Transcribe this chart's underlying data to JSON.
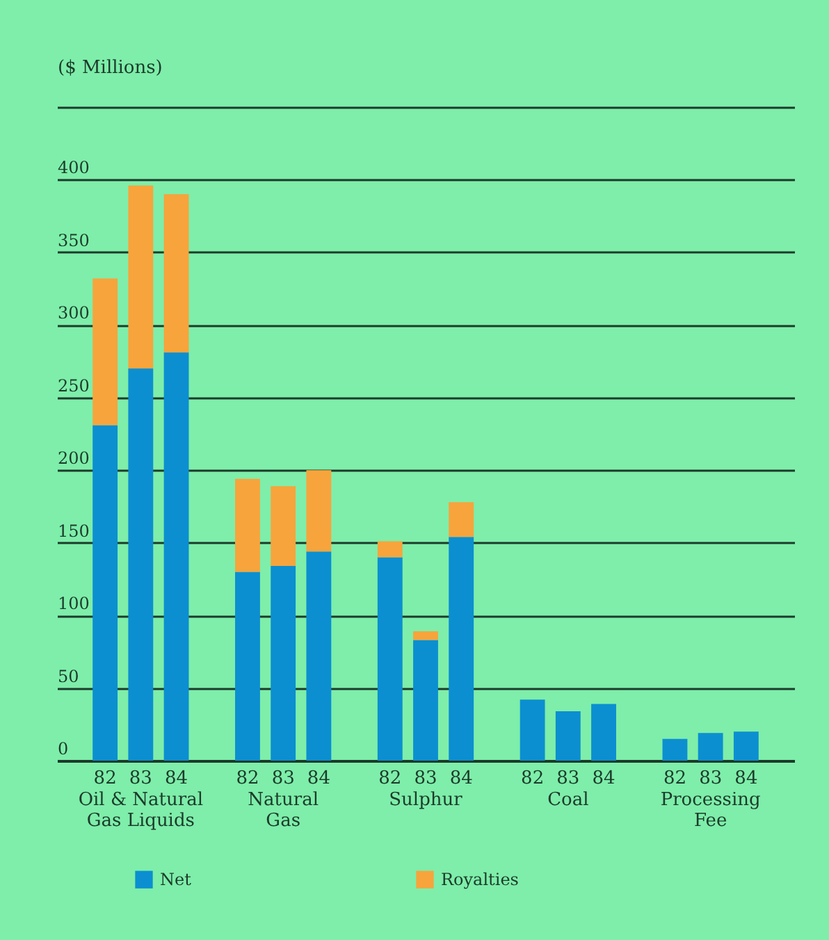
{
  "chart_data": {
    "type": "bar",
    "stacked": true,
    "ylabel": "($ Millions)",
    "categories": [
      "82",
      "83",
      "84",
      "82",
      "83",
      "84",
      "82",
      "83",
      "84",
      "82",
      "83",
      "84",
      "82",
      "83",
      "84"
    ],
    "annotations": [
      "Oil & Natural Gas Liquids",
      "Natural Gas",
      "Sulphur",
      "Coal",
      "Processing Fee"
    ],
    "series": [
      {
        "name": "Net",
        "color": "#0b8fd0",
        "values": [
          231,
          270,
          281,
          130,
          134,
          144,
          140,
          83,
          154,
          42,
          34,
          39,
          15,
          19,
          20
        ]
      },
      {
        "name": "Royalties",
        "color": "#f7a43c",
        "values": [
          101,
          126,
          109,
          64,
          55,
          56,
          11,
          6,
          24,
          0,
          0,
          0,
          0,
          0,
          0
        ]
      }
    ],
    "ylim": [
      0,
      450
    ],
    "yticks": [
      0,
      50,
      100,
      150,
      200,
      250,
      300,
      350,
      400,
      {
        "value": 450,
        "label": null
      }
    ],
    "grid": "y",
    "legend": "bottom"
  }
}
